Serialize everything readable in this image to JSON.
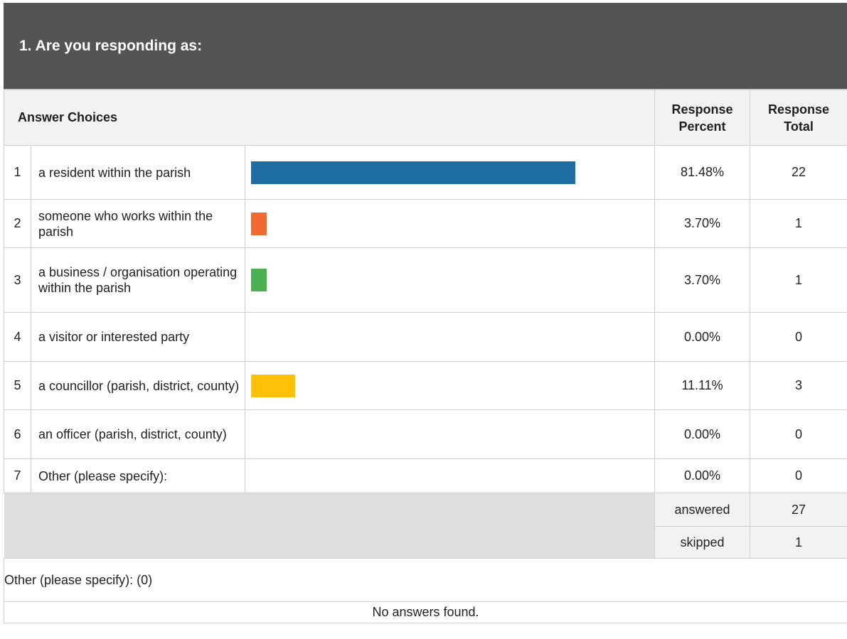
{
  "question": {
    "title": "1. Are you responding as:"
  },
  "headers": {
    "answer_choices": "Answer Choices",
    "response_percent_line1": "Response",
    "response_percent_line2": "Percent",
    "response_total_line1": "Response",
    "response_total_line2": "Total"
  },
  "rows": [
    {
      "num": "1",
      "choice": "a resident within the parish",
      "percent": "81.48%",
      "total": "22",
      "value": 81.48,
      "color": "#1f6fa5"
    },
    {
      "num": "2",
      "choice": "someone who works within the parish",
      "percent": "3.70%",
      "total": "1",
      "value": 3.7,
      "color": "#f06a31"
    },
    {
      "num": "3",
      "choice": "a business / organisation operating within the parish",
      "percent": "3.70%",
      "total": "1",
      "value": 3.7,
      "color": "#4caf50"
    },
    {
      "num": "4",
      "choice": "a visitor or interested party",
      "percent": "0.00%",
      "total": "0",
      "value": 0,
      "color": "#7e57c2"
    },
    {
      "num": "5",
      "choice": "a councillor (parish, district, county)",
      "percent": "11.11%",
      "total": "3",
      "value": 11.11,
      "color": "#ffc107"
    },
    {
      "num": "6",
      "choice": "an officer (parish, district, county)",
      "percent": "0.00%",
      "total": "0",
      "value": 0,
      "color": "#26a69a"
    },
    {
      "num": "7",
      "choice": "Other (please specify):",
      "percent": "0.00%",
      "total": "0",
      "value": 0,
      "color": "#9e9e9e"
    }
  ],
  "summary": {
    "answered_label": "answered",
    "answered_value": "27",
    "skipped_label": "skipped",
    "skipped_value": "1"
  },
  "other": {
    "heading": "Other (please specify): (0)",
    "empty_message": "No answers found."
  }
}
